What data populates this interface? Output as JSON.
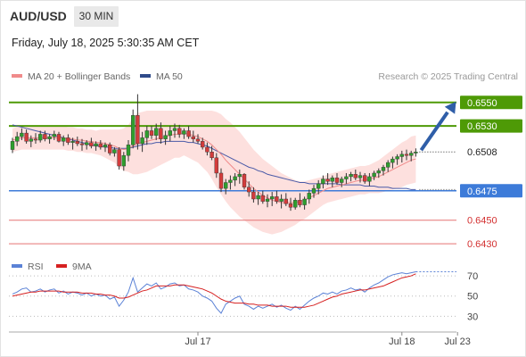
{
  "header": {
    "symbol": "AUD/USD",
    "timeframe": "30 MIN",
    "datetime": "Friday, July 18, 2025 5:30:35 AM CET"
  },
  "legend": {
    "ma20_label": "MA 20 + Bollinger Bands",
    "ma50_label": "MA 50",
    "rsi_label": "RSI",
    "rsi_ma_label": "9MA",
    "copyright": "Research © 2025 Trading Central"
  },
  "colors": {
    "bull": "#2e9e2e",
    "bear": "#d33b3b",
    "ma20": "#f08b8b",
    "bands": "#fde0de",
    "ma50": "#4a5aa8",
    "green_level": "#4e9a06",
    "blue_level": "#3d7bd9",
    "red_level": "#e57373",
    "arrow": "#2f5ea8",
    "rsi": "#5b82d6",
    "rsi_ma": "#d62020"
  },
  "chart_data": {
    "type": "candlestick",
    "y_range": [
      0.6421,
      0.6565
    ],
    "levels": [
      {
        "value": 0.655,
        "label": "0.6550",
        "kind": "resistance"
      },
      {
        "value": 0.653,
        "label": "0.6530",
        "kind": "resistance"
      },
      {
        "value": 0.6508,
        "label": "0.6508",
        "kind": "last"
      },
      {
        "value": 0.6475,
        "label": "0.6475",
        "kind": "pivot"
      },
      {
        "value": 0.645,
        "label": "0.6450",
        "kind": "support"
      },
      {
        "value": 0.643,
        "label": "0.6430",
        "kind": "support"
      }
    ],
    "arrow_target": 0.655,
    "x_ticks": [
      {
        "label": "Jul 17",
        "bar": 40
      },
      {
        "label": "Jul 18",
        "bar": 84
      },
      {
        "label": "Jul 23",
        "bar": 96
      }
    ],
    "candles": [
      [
        0.651,
        0.652,
        0.6507,
        0.6517
      ],
      [
        0.6517,
        0.6525,
        0.6513,
        0.6521
      ],
      [
        0.6521,
        0.6528,
        0.6518,
        0.6524
      ],
      [
        0.6524,
        0.6527,
        0.6515,
        0.6517
      ],
      [
        0.6517,
        0.6522,
        0.6512,
        0.6519
      ],
      [
        0.6519,
        0.6524,
        0.6515,
        0.6518
      ],
      [
        0.6518,
        0.6526,
        0.6516,
        0.6523
      ],
      [
        0.6523,
        0.6526,
        0.6517,
        0.6519
      ],
      [
        0.6519,
        0.6523,
        0.6515,
        0.6521
      ],
      [
        0.6521,
        0.6526,
        0.6518,
        0.6523
      ],
      [
        0.6523,
        0.6525,
        0.6516,
        0.6517
      ],
      [
        0.6517,
        0.6522,
        0.6513,
        0.652
      ],
      [
        0.652,
        0.6523,
        0.6514,
        0.6516
      ],
      [
        0.6516,
        0.652,
        0.651,
        0.6517
      ],
      [
        0.6517,
        0.6521,
        0.6513,
        0.6515
      ],
      [
        0.6515,
        0.6519,
        0.6509,
        0.6514
      ],
      [
        0.6514,
        0.6518,
        0.651,
        0.6516
      ],
      [
        0.6516,
        0.652,
        0.6511,
        0.6513
      ],
      [
        0.6513,
        0.6517,
        0.6509,
        0.6515
      ],
      [
        0.6515,
        0.6518,
        0.651,
        0.6512
      ],
      [
        0.6512,
        0.6516,
        0.6508,
        0.6514
      ],
      [
        0.6514,
        0.6516,
        0.6505,
        0.6507
      ],
      [
        0.6507,
        0.6512,
        0.6504,
        0.651
      ],
      [
        0.651,
        0.6512,
        0.6493,
        0.6496
      ],
      [
        0.6496,
        0.6508,
        0.6492,
        0.6505
      ],
      [
        0.6505,
        0.6518,
        0.65,
        0.6514
      ],
      [
        0.6514,
        0.6544,
        0.6511,
        0.6539
      ],
      [
        0.6539,
        0.6557,
        0.651,
        0.6515
      ],
      [
        0.6515,
        0.6525,
        0.6508,
        0.652
      ],
      [
        0.652,
        0.653,
        0.6514,
        0.6526
      ],
      [
        0.6526,
        0.653,
        0.6519,
        0.6522
      ],
      [
        0.6522,
        0.6532,
        0.6518,
        0.6528
      ],
      [
        0.6528,
        0.6533,
        0.6515,
        0.6519
      ],
      [
        0.6519,
        0.6526,
        0.6514,
        0.6522
      ],
      [
        0.6522,
        0.653,
        0.6517,
        0.6526
      ],
      [
        0.6526,
        0.6532,
        0.652,
        0.6528
      ],
      [
        0.6528,
        0.6531,
        0.652,
        0.6523
      ],
      [
        0.6523,
        0.6528,
        0.6519,
        0.6526
      ],
      [
        0.6526,
        0.653,
        0.6519,
        0.6521
      ],
      [
        0.6521,
        0.6526,
        0.6516,
        0.6519
      ],
      [
        0.6519,
        0.6523,
        0.6515,
        0.6517
      ],
      [
        0.6517,
        0.652,
        0.651,
        0.6512
      ],
      [
        0.6512,
        0.6516,
        0.6505,
        0.6508
      ],
      [
        0.6508,
        0.6513,
        0.6501,
        0.6503
      ],
      [
        0.6503,
        0.6507,
        0.6486,
        0.649
      ],
      [
        0.649,
        0.6494,
        0.6474,
        0.6477
      ],
      [
        0.6477,
        0.6485,
        0.6472,
        0.6482
      ],
      [
        0.6482,
        0.6488,
        0.6476,
        0.6484
      ],
      [
        0.6484,
        0.649,
        0.6479,
        0.6487
      ],
      [
        0.6487,
        0.6493,
        0.6481,
        0.6489
      ],
      [
        0.6489,
        0.649,
        0.6476,
        0.6478
      ],
      [
        0.6478,
        0.6483,
        0.647,
        0.6474
      ],
      [
        0.6474,
        0.6478,
        0.6465,
        0.6468
      ],
      [
        0.6468,
        0.6474,
        0.6463,
        0.6471
      ],
      [
        0.6471,
        0.6475,
        0.6464,
        0.6466
      ],
      [
        0.6466,
        0.6472,
        0.6461,
        0.6468
      ],
      [
        0.6468,
        0.6474,
        0.6462,
        0.647
      ],
      [
        0.647,
        0.6475,
        0.6464,
        0.6466
      ],
      [
        0.6466,
        0.6472,
        0.646,
        0.6468
      ],
      [
        0.6468,
        0.6473,
        0.6462,
        0.6464
      ],
      [
        0.6464,
        0.6469,
        0.6458,
        0.6461
      ],
      [
        0.6461,
        0.6469,
        0.6459,
        0.6467
      ],
      [
        0.6467,
        0.6473,
        0.6461,
        0.6463
      ],
      [
        0.6463,
        0.647,
        0.6459,
        0.6468
      ],
      [
        0.6468,
        0.6476,
        0.6464,
        0.6473
      ],
      [
        0.6473,
        0.648,
        0.6469,
        0.6477
      ],
      [
        0.6477,
        0.6484,
        0.6472,
        0.6481
      ],
      [
        0.6481,
        0.6488,
        0.6477,
        0.6485
      ],
      [
        0.6485,
        0.649,
        0.648,
        0.6483
      ],
      [
        0.6483,
        0.6488,
        0.6478,
        0.6486
      ],
      [
        0.6486,
        0.649,
        0.648,
        0.6482
      ],
      [
        0.6482,
        0.6487,
        0.6478,
        0.6485
      ],
      [
        0.6485,
        0.649,
        0.6481,
        0.6487
      ],
      [
        0.6487,
        0.6491,
        0.6483,
        0.6489
      ],
      [
        0.6489,
        0.6493,
        0.6484,
        0.6486
      ],
      [
        0.6486,
        0.6491,
        0.6482,
        0.6488
      ],
      [
        0.6488,
        0.649,
        0.6481,
        0.6483
      ],
      [
        0.6483,
        0.649,
        0.6479,
        0.6487
      ],
      [
        0.6487,
        0.6492,
        0.6484,
        0.649
      ],
      [
        0.649,
        0.6494,
        0.6486,
        0.6492
      ],
      [
        0.6492,
        0.6497,
        0.6488,
        0.6495
      ],
      [
        0.6495,
        0.6501,
        0.6491,
        0.6499
      ],
      [
        0.6499,
        0.6504,
        0.6494,
        0.6502
      ],
      [
        0.6502,
        0.6506,
        0.6497,
        0.6504
      ],
      [
        0.6504,
        0.6509,
        0.6499,
        0.6506
      ],
      [
        0.6506,
        0.651,
        0.6501,
        0.6505
      ],
      [
        0.6505,
        0.6509,
        0.65,
        0.6507
      ],
      [
        0.6507,
        0.6511,
        0.6504,
        0.6508
      ]
    ],
    "rsi": {
      "ticks": [
        70,
        50,
        30
      ],
      "range": [
        18,
        78
      ],
      "rsi_values": [
        52,
        54,
        57,
        58,
        54,
        55,
        57,
        54,
        56,
        57,
        53,
        55,
        52,
        54,
        53,
        51,
        53,
        50,
        52,
        50,
        51,
        47,
        49,
        40,
        46,
        54,
        68,
        54,
        58,
        62,
        60,
        63,
        57,
        59,
        62,
        63,
        60,
        61,
        57,
        56,
        54,
        50,
        48,
        45,
        38,
        33,
        42,
        45,
        48,
        50,
        42,
        40,
        37,
        40,
        38,
        40,
        42,
        39,
        41,
        38,
        36,
        40,
        37,
        41,
        45,
        48,
        50,
        53,
        52,
        54,
        52,
        55,
        56,
        58,
        56,
        57,
        54,
        58,
        61,
        63,
        66,
        69,
        71,
        72,
        73,
        72,
        73,
        74
      ],
      "ma_values": [
        50,
        51,
        52,
        53,
        54,
        54,
        55,
        55,
        55,
        55,
        55,
        54,
        54,
        54,
        54,
        53,
        53,
        53,
        52,
        52,
        51,
        51,
        50,
        48,
        48,
        49,
        51,
        53,
        55,
        56,
        58,
        60,
        60,
        60,
        60,
        61,
        61,
        61,
        60,
        59,
        58,
        57,
        55,
        53,
        50,
        47,
        45,
        44,
        43,
        43,
        43,
        42,
        42,
        41,
        41,
        41,
        40,
        40,
        40,
        40,
        39,
        39,
        39,
        39,
        40,
        41,
        43,
        45,
        47,
        49,
        50,
        52,
        53,
        54,
        55,
        56,
        56,
        57,
        58,
        59,
        60,
        62,
        64,
        66,
        68,
        69,
        70,
        72
      ]
    },
    "ma20": [
      0.6518,
      0.6519,
      0.652,
      0.652,
      0.652,
      0.652,
      0.652,
      0.652,
      0.652,
      0.652,
      0.652,
      0.652,
      0.6519,
      0.6519,
      0.6518,
      0.6518,
      0.6517,
      0.6517,
      0.6516,
      0.6516,
      0.6515,
      0.6514,
      0.6513,
      0.6511,
      0.651,
      0.6511,
      0.6513,
      0.6515,
      0.6516,
      0.6517,
      0.6518,
      0.6519,
      0.652,
      0.6521,
      0.6522,
      0.6523,
      0.6523,
      0.6524,
      0.6523,
      0.6522,
      0.6521,
      0.6519,
      0.6517,
      0.6514,
      0.651,
      0.6506,
      0.6501,
      0.6497,
      0.6493,
      0.6489,
      0.6485,
      0.6481,
      0.6477,
      0.6474,
      0.6471,
      0.6469,
      0.6467,
      0.6466,
      0.6465,
      0.6465,
      0.6465,
      0.6465,
      0.6466,
      0.6467,
      0.6469,
      0.6471,
      0.6473,
      0.6475,
      0.6477,
      0.6478,
      0.6479,
      0.648,
      0.6481,
      0.6482,
      0.6483,
      0.6484,
      0.6484,
      0.6485,
      0.6486,
      0.6487,
      0.6489,
      0.6491,
      0.6493,
      0.6495,
      0.6497,
      0.6499,
      0.6501,
      0.6502
    ],
    "bb_width": [
      0.001,
      0.001,
      0.001,
      0.001,
      0.001,
      0.001,
      0.001,
      0.001,
      0.001,
      0.001,
      0.001,
      0.001,
      0.001,
      0.001,
      0.001,
      0.001,
      0.001,
      0.001,
      0.001,
      0.0011,
      0.0012,
      0.0013,
      0.0014,
      0.0016,
      0.0018,
      0.002,
      0.0024,
      0.0026,
      0.0026,
      0.0026,
      0.0025,
      0.0024,
      0.0023,
      0.0022,
      0.0021,
      0.002,
      0.002,
      0.0019,
      0.002,
      0.0021,
      0.0022,
      0.0024,
      0.0026,
      0.0029,
      0.0032,
      0.0034,
      0.0035,
      0.0036,
      0.0036,
      0.0036,
      0.0035,
      0.0034,
      0.0033,
      0.0032,
      0.0031,
      0.003,
      0.0029,
      0.0027,
      0.0025,
      0.0023,
      0.0021,
      0.0019,
      0.0017,
      0.0016,
      0.0015,
      0.0014,
      0.0013,
      0.0012,
      0.0012,
      0.0012,
      0.0012,
      0.0012,
      0.0012,
      0.0012,
      0.0012,
      0.0012,
      0.0012,
      0.0012,
      0.0013,
      0.0014,
      0.0015,
      0.0016,
      0.0017,
      0.0018,
      0.0019,
      0.0019,
      0.002,
      0.002
    ],
    "ma50": [
      0.6531,
      0.653,
      0.6529,
      0.6528,
      0.6527,
      0.6526,
      0.6525,
      0.6524,
      0.6523,
      0.6522,
      0.6521,
      0.652,
      0.6519,
      0.6518,
      0.6517,
      0.6516,
      0.6515,
      0.6514,
      0.6513,
      0.6513,
      0.6512,
      0.6512,
      0.6511,
      0.6511,
      0.6511,
      0.6511,
      0.6512,
      0.6513,
      0.6514,
      0.6515,
      0.6515,
      0.6516,
      0.6516,
      0.6517,
      0.6517,
      0.6517,
      0.6517,
      0.6517,
      0.6516,
      0.6516,
      0.6515,
      0.6514,
      0.6513,
      0.6511,
      0.6509,
      0.6507,
      0.6505,
      0.6503,
      0.6501,
      0.6499,
      0.6497,
      0.6495,
      0.6494,
      0.6492,
      0.6491,
      0.6489,
      0.6488,
      0.6487,
      0.6486,
      0.6485,
      0.6484,
      0.6483,
      0.6482,
      0.6482,
      0.6481,
      0.6481,
      0.6481,
      0.6481,
      0.6481,
      0.6481,
      0.6481,
      0.648,
      0.648,
      0.648,
      0.648,
      0.648,
      0.6479,
      0.6479,
      0.6479,
      0.6478,
      0.6478,
      0.6478,
      0.6477,
      0.6477,
      0.6477,
      0.6477,
      0.6476,
      0.6476
    ]
  }
}
